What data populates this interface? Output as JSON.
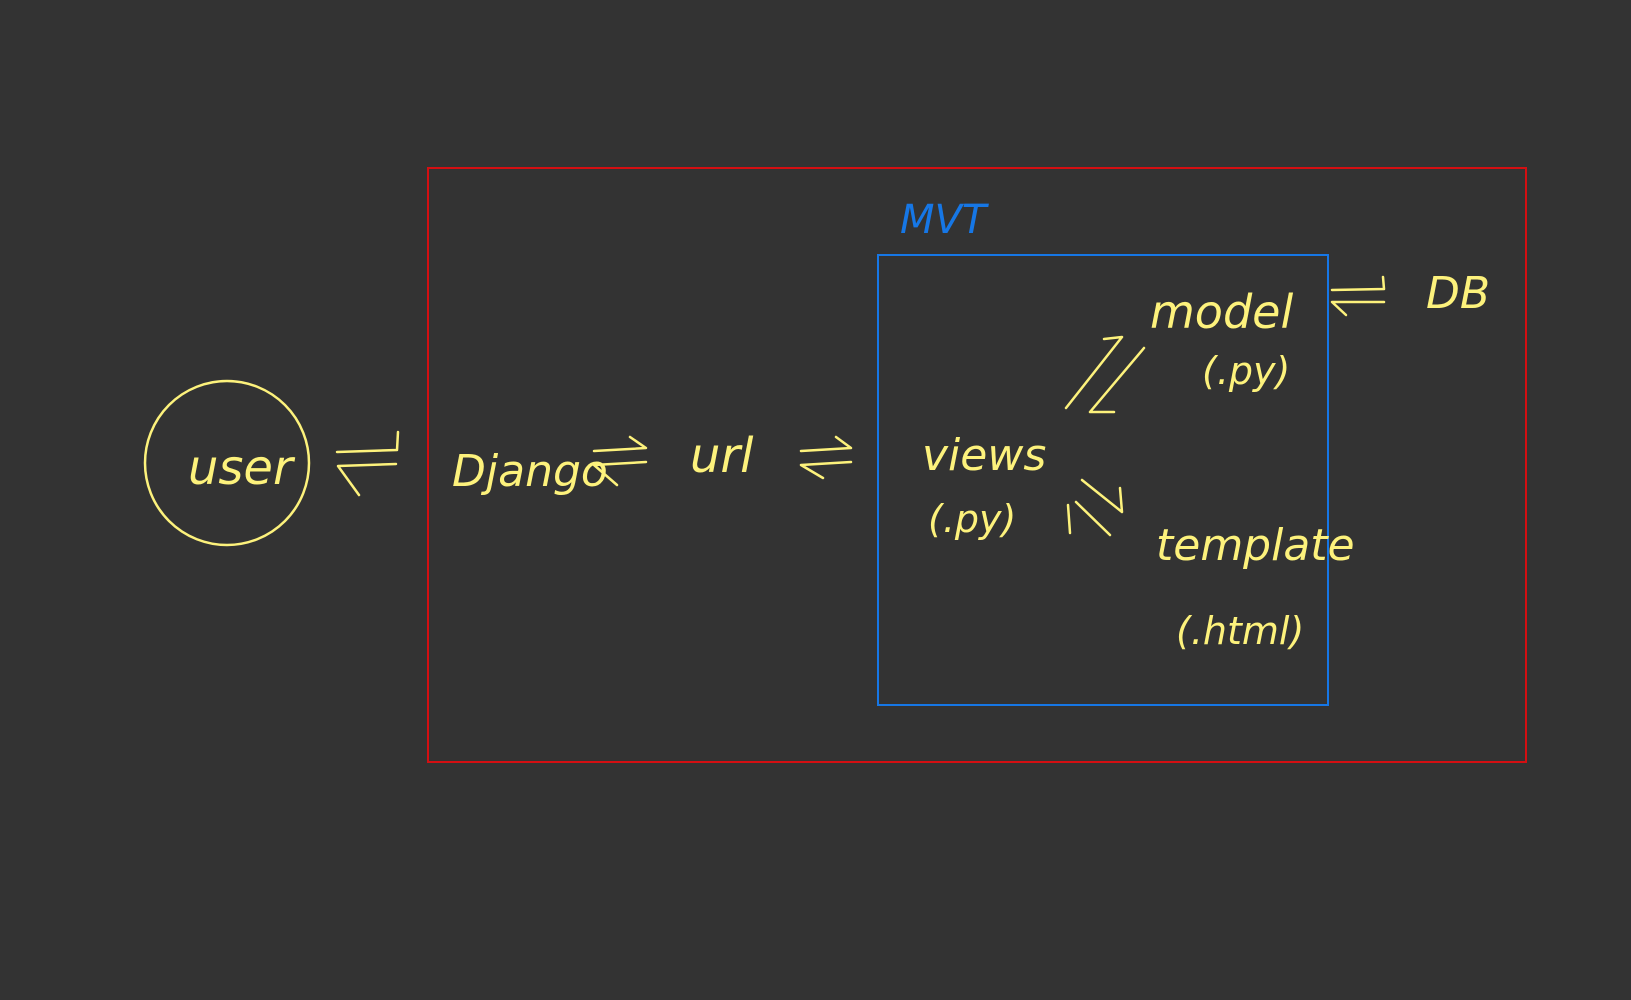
{
  "labels": {
    "user": "user",
    "django": "Django",
    "url": "url",
    "views": "views",
    "views_ext": "(.py)",
    "model": "model",
    "model_ext": "(.py)",
    "template": "template",
    "template_ext": "(.html)",
    "db": "DB",
    "mvt": "MVT"
  },
  "colors": {
    "background": "#333333",
    "ink": "#fdf27c",
    "django_box": "#d40f12",
    "mvt_box": "#1677e6"
  }
}
